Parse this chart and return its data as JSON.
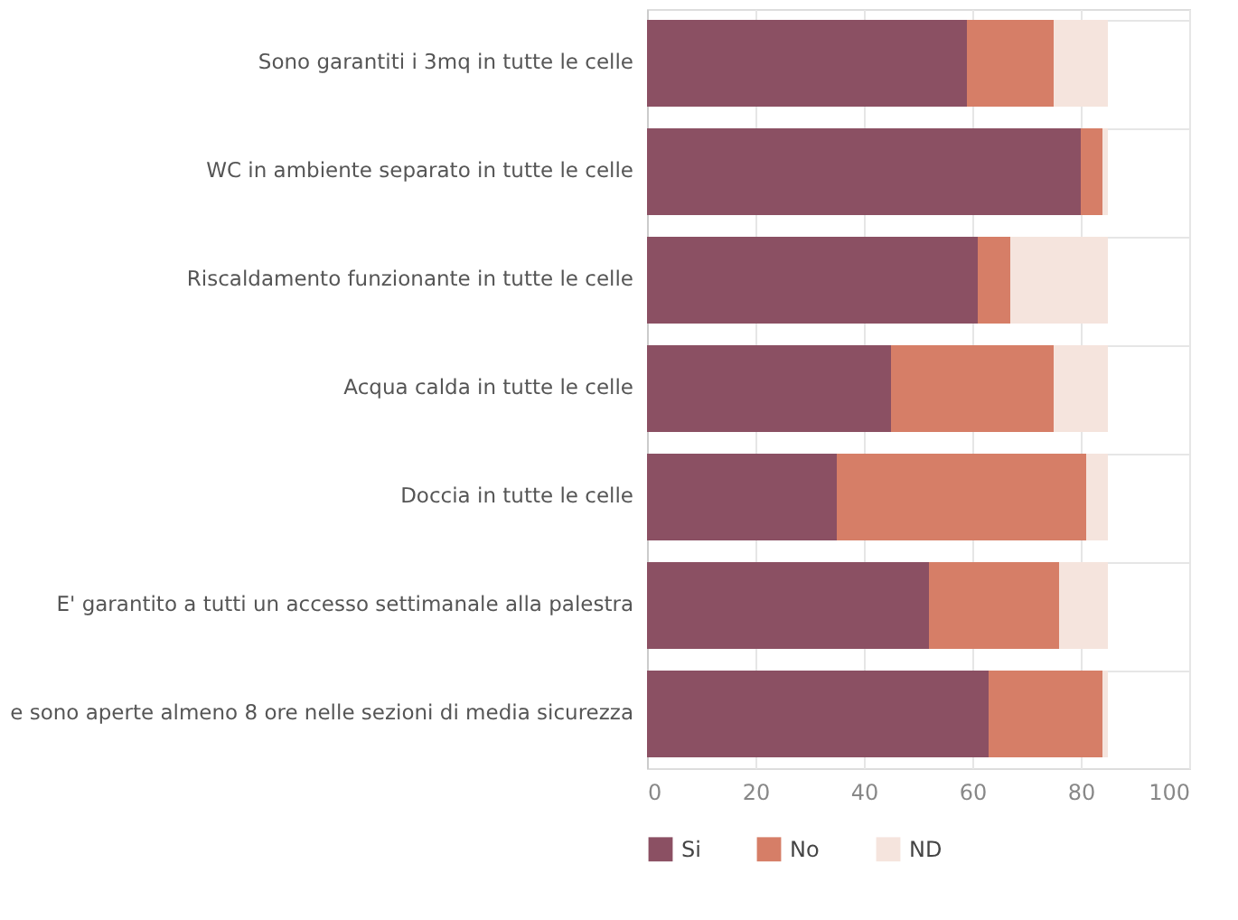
{
  "chart_data": {
    "type": "bar",
    "orientation": "horizontal",
    "stacked": true,
    "categories": [
      "Sono garantiti i 3mq in tutte le celle",
      "WC in ambiente separato in tutte le celle",
      "Riscaldamento funzionante in tutte le celle",
      "Acqua calda in tutte le celle",
      "Doccia in tutte le celle",
      "E' garantito a tutti un accesso settimanale alla palestra",
      "e sono aperte almeno 8 ore nelle sezioni di media sicurezza"
    ],
    "series": [
      {
        "name": "Si",
        "color": "#8b5063",
        "values": [
          59,
          80,
          61,
          45,
          35,
          52,
          63
        ]
      },
      {
        "name": "No",
        "color": "#d67e67",
        "values": [
          16,
          4,
          6,
          30,
          46,
          24,
          21
        ]
      },
      {
        "name": "ND",
        "color": "#f5e4dd",
        "values": [
          10,
          1,
          18,
          10,
          4,
          9,
          1
        ]
      }
    ],
    "xlim": [
      0,
      100
    ],
    "xticks": [
      0,
      20,
      40,
      60,
      80,
      100
    ],
    "grid": true,
    "legend": "bottom"
  }
}
